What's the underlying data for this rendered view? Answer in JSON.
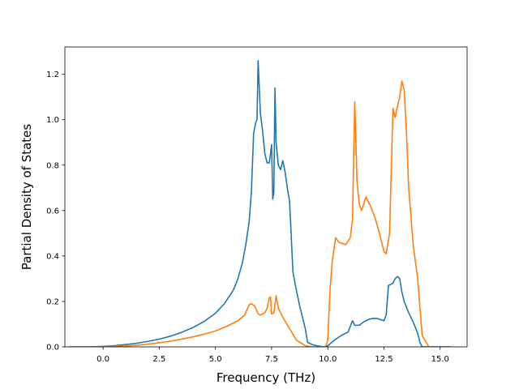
{
  "chart_data": {
    "type": "line",
    "xlabel": "Frequency (THz)",
    "ylabel": "Partial Density of States",
    "xlim": [
      -1.7,
      16.2
    ],
    "ylim": [
      0.0,
      1.32
    ],
    "xticks": [
      0.0,
      2.5,
      5.0,
      7.5,
      10.0,
      12.5,
      15.0
    ],
    "xtick_labels": [
      "0.0",
      "2.5",
      "5.0",
      "7.5",
      "10.0",
      "12.5",
      "15.0"
    ],
    "yticks": [
      0.0,
      0.2,
      0.4,
      0.6,
      0.8,
      1.0,
      1.2
    ],
    "ytick_labels": [
      "0.0",
      "0.2",
      "0.4",
      "0.6",
      "0.8",
      "1.0",
      "1.2"
    ],
    "grid": false,
    "legend": "none",
    "series": [
      {
        "color": "#1f77b4",
        "x": [
          -1.5,
          -0.5,
          0.0,
          0.5,
          1.0,
          1.5,
          2.0,
          2.5,
          3.0,
          3.5,
          4.0,
          4.5,
          5.0,
          5.4,
          5.8,
          6.0,
          6.2,
          6.35,
          6.5,
          6.6,
          6.7,
          6.8,
          6.85,
          6.9,
          7.0,
          7.1,
          7.2,
          7.3,
          7.4,
          7.5,
          7.55,
          7.6,
          7.65,
          7.7,
          7.75,
          7.8,
          7.9,
          8.0,
          8.1,
          8.2,
          8.3,
          8.45,
          8.6,
          8.75,
          8.9,
          9.0,
          9.1,
          9.3,
          9.5,
          9.8,
          10.0,
          10.3,
          10.6,
          10.9,
          11.0,
          11.1,
          11.2,
          11.4,
          11.6,
          11.8,
          12.0,
          12.2,
          12.5,
          12.6,
          12.7,
          12.8,
          12.9,
          13.0,
          13.1,
          13.2,
          13.3,
          13.4,
          13.6,
          13.8,
          14.0,
          14.1,
          14.2,
          14.5,
          15.5
        ],
        "y": [
          0.0,
          0.0,
          0.002,
          0.005,
          0.01,
          0.016,
          0.024,
          0.034,
          0.047,
          0.064,
          0.085,
          0.112,
          0.148,
          0.19,
          0.25,
          0.3,
          0.37,
          0.45,
          0.55,
          0.68,
          0.94,
          0.99,
          1.0,
          1.26,
          1.03,
          0.95,
          0.85,
          0.81,
          0.81,
          0.89,
          0.65,
          0.68,
          1.14,
          0.9,
          0.85,
          0.8,
          0.78,
          0.82,
          0.77,
          0.7,
          0.64,
          0.33,
          0.25,
          0.18,
          0.12,
          0.08,
          0.02,
          0.01,
          0.005,
          0.0,
          0.005,
          0.03,
          0.05,
          0.065,
          0.09,
          0.115,
          0.095,
          0.095,
          0.11,
          0.12,
          0.125,
          0.125,
          0.115,
          0.14,
          0.27,
          0.275,
          0.28,
          0.3,
          0.31,
          0.3,
          0.24,
          0.2,
          0.15,
          0.11,
          0.06,
          0.02,
          0.0,
          0.0,
          0.0
        ]
      },
      {
        "color": "#ff7f0e",
        "x": [
          -1.5,
          -0.5,
          0.0,
          0.5,
          1.0,
          1.5,
          2.0,
          2.5,
          3.0,
          3.5,
          4.0,
          4.5,
          5.0,
          5.5,
          6.0,
          6.3,
          6.5,
          6.6,
          6.75,
          6.9,
          7.0,
          7.2,
          7.3,
          7.4,
          7.45,
          7.5,
          7.6,
          7.7,
          7.8,
          8.0,
          8.3,
          8.6,
          9.0,
          9.3,
          9.6,
          9.9,
          10.0,
          10.1,
          10.2,
          10.35,
          10.5,
          10.8,
          11.0,
          11.1,
          11.2,
          11.3,
          11.4,
          11.5,
          11.7,
          11.9,
          12.1,
          12.3,
          12.5,
          12.6,
          12.75,
          12.9,
          13.0,
          13.1,
          13.2,
          13.3,
          13.4,
          13.5,
          13.6,
          13.8,
          14.0,
          14.2,
          14.5,
          15.5
        ],
        "y": [
          0.0,
          0.0,
          0.001,
          0.002,
          0.004,
          0.007,
          0.012,
          0.018,
          0.025,
          0.034,
          0.044,
          0.056,
          0.07,
          0.09,
          0.115,
          0.14,
          0.185,
          0.19,
          0.18,
          0.145,
          0.14,
          0.15,
          0.17,
          0.215,
          0.22,
          0.145,
          0.15,
          0.225,
          0.17,
          0.13,
          0.08,
          0.03,
          0.005,
          0.0,
          0.0,
          0.0,
          0.03,
          0.25,
          0.38,
          0.48,
          0.46,
          0.45,
          0.48,
          0.56,
          1.08,
          0.73,
          0.63,
          0.6,
          0.66,
          0.62,
          0.57,
          0.5,
          0.42,
          0.41,
          0.5,
          1.05,
          1.01,
          1.06,
          1.1,
          1.17,
          1.13,
          0.95,
          0.7,
          0.45,
          0.3,
          0.05,
          0.0,
          0.0
        ]
      }
    ]
  }
}
